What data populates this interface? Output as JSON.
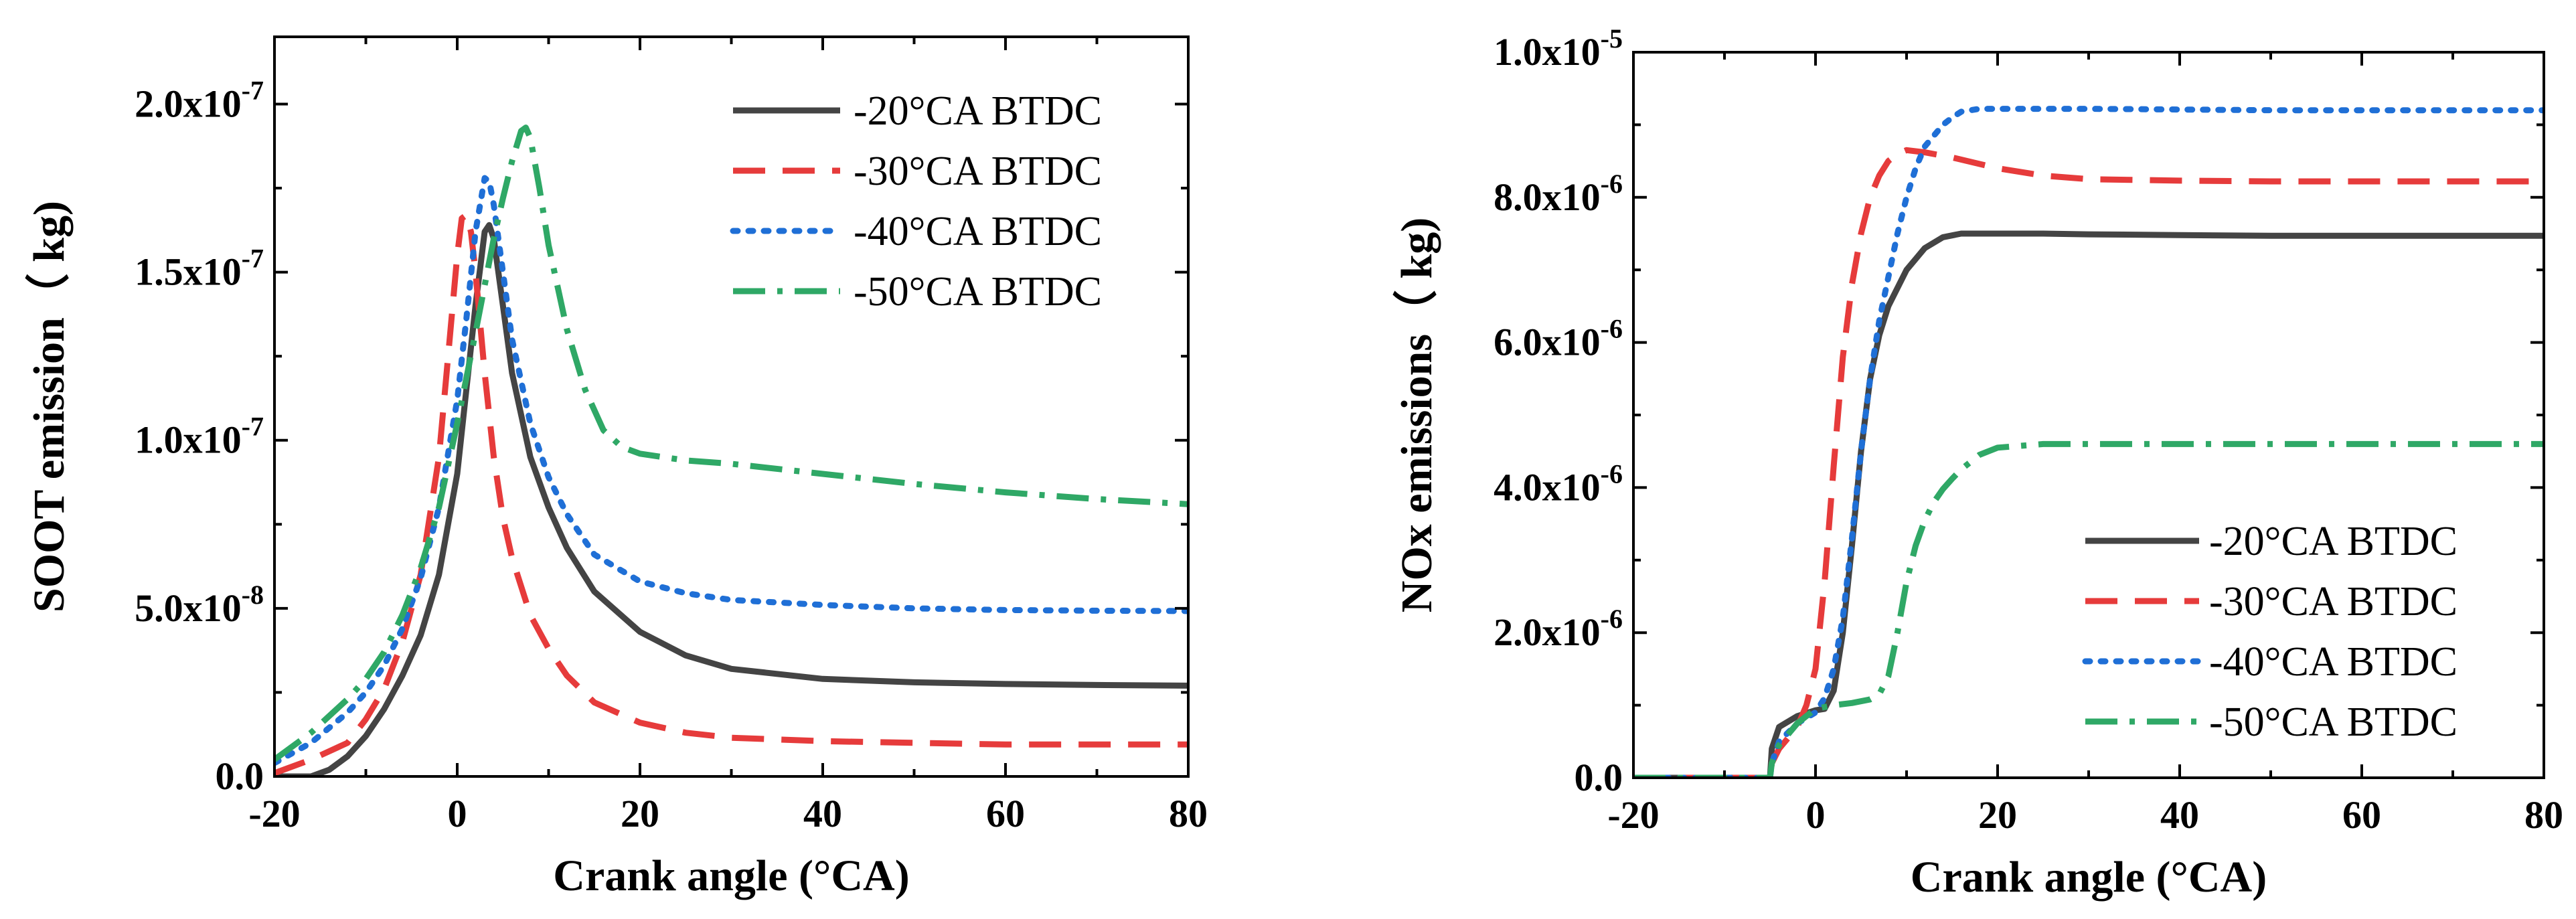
{
  "chart_data": [
    {
      "type": "line",
      "id": "soot",
      "xlabel": "Crank angle (°CA)",
      "ylabel": "SOOT emission（ kg)",
      "xlim": [
        -20,
        80
      ],
      "ylim": [
        0,
        2.2e-07
      ],
      "xticks": [
        -20,
        0,
        20,
        40,
        60,
        80
      ],
      "xtick_labels": [
        "-20",
        "0",
        "20",
        "40",
        "60",
        "80"
      ],
      "yticks": [
        {
          "value": 0,
          "mant": "0.0",
          "exp": ""
        },
        {
          "value": 5e-08,
          "mant": "5.0x10",
          "exp": "-8"
        },
        {
          "value": 1e-07,
          "mant": "1.0x10",
          "exp": "-7"
        },
        {
          "value": 1.5e-07,
          "mant": "1.5x10",
          "exp": "-7"
        },
        {
          "value": 2e-07,
          "mant": "2.0x10",
          "exp": "-7"
        }
      ],
      "legend_position": "top-right",
      "series": [
        {
          "name": "-20°CA BTDC",
          "color": "#444444",
          "dash": "solid",
          "x": [
            -20,
            -16,
            -14,
            -12,
            -10,
            -8,
            -6,
            -4,
            -2,
            0,
            1,
            2,
            3,
            3.5,
            4,
            5,
            6,
            8,
            10,
            12,
            15,
            20,
            25,
            30,
            40,
            50,
            60,
            70,
            80
          ],
          "y": [
            0,
            0,
            2e-09,
            6e-09,
            1.2e-08,
            2e-08,
            3e-08,
            4.2e-08,
            6e-08,
            9e-08,
            1.15e-07,
            1.4e-07,
            1.62e-07,
            1.64e-07,
            1.6e-07,
            1.4e-07,
            1.2e-07,
            9.5e-08,
            8e-08,
            6.8e-08,
            5.5e-08,
            4.3e-08,
            3.6e-08,
            3.2e-08,
            2.9e-08,
            2.8e-08,
            2.75e-08,
            2.72e-08,
            2.7e-08
          ]
        },
        {
          "name": "-30°CA BTDC",
          "color": "#e63b3b",
          "dash": "long-dash",
          "x": [
            -20,
            -16,
            -12,
            -10,
            -8,
            -6,
            -4,
            -2,
            -1,
            0,
            0.5,
            1,
            1.5,
            2,
            3,
            4,
            5,
            6,
            8,
            10,
            12,
            15,
            20,
            25,
            30,
            40,
            50,
            60,
            70,
            80
          ],
          "y": [
            1e-09,
            5e-09,
            1e-08,
            1.7e-08,
            2.6e-08,
            4e-08,
            6e-08,
            9.5e-08,
            1.25e-07,
            1.55e-07,
            1.66e-07,
            1.67e-07,
            1.62e-07,
            1.5e-07,
            1.2e-07,
            9.5e-08,
            7.7e-08,
            6.5e-08,
            4.8e-08,
            3.8e-08,
            3e-08,
            2.2e-08,
            1.6e-08,
            1.3e-08,
            1.15e-08,
            1.05e-08,
            1e-08,
            9.5e-09,
            9.5e-09,
            9.5e-09
          ]
        },
        {
          "name": "-40°CA BTDC",
          "color": "#1f6fd6",
          "dash": "dot",
          "x": [
            -20,
            -16,
            -12,
            -10,
            -8,
            -6,
            -4,
            -2,
            0,
            1,
            2,
            3,
            3.5,
            4,
            5,
            6,
            8,
            10,
            12,
            15,
            20,
            25,
            30,
            40,
            50,
            60,
            70,
            80
          ],
          "y": [
            4e-09,
            1e-08,
            1.9e-08,
            2.5e-08,
            3.3e-08,
            4.4e-08,
            5.9e-08,
            8e-08,
            1.12e-07,
            1.36e-07,
            1.62e-07,
            1.78e-07,
            1.77e-07,
            1.7e-07,
            1.5e-07,
            1.3e-07,
            1.05e-07,
            8.9e-08,
            7.8e-08,
            6.6e-08,
            5.8e-08,
            5.45e-08,
            5.25e-08,
            5.1e-08,
            5e-08,
            4.95e-08,
            4.93e-08,
            4.92e-08
          ]
        },
        {
          "name": "-50°CA BTDC",
          "color": "#2fa866",
          "dash": "dash-dot",
          "x": [
            -20,
            -16,
            -12,
            -10,
            -8,
            -6,
            -4,
            -2,
            0,
            2,
            4,
            5,
            6,
            7,
            7.5,
            8,
            9,
            10,
            12,
            14,
            16,
            18,
            20,
            25,
            30,
            40,
            50,
            60,
            70,
            80
          ],
          "y": [
            5e-09,
            1.3e-08,
            2.3e-08,
            2.9e-08,
            3.7e-08,
            4.8e-08,
            6.2e-08,
            8e-08,
            1.05e-07,
            1.32e-07,
            1.6e-07,
            1.72e-07,
            1.83e-07,
            1.92e-07,
            1.93e-07,
            1.9e-07,
            1.75e-07,
            1.58e-07,
            1.33e-07,
            1.15e-07,
            1.03e-07,
            9.8e-08,
            9.6e-08,
            9.4e-08,
            9.3e-08,
            9e-08,
            8.7e-08,
            8.45e-08,
            8.25e-08,
            8.1e-08
          ]
        }
      ]
    },
    {
      "type": "line",
      "id": "nox",
      "xlabel": "Crank angle (°CA)",
      "ylabel": "NOx  emissions（ kg)",
      "xlim": [
        -20,
        80
      ],
      "ylim": [
        0,
        1e-05
      ],
      "xticks": [
        -20,
        0,
        20,
        40,
        60,
        80
      ],
      "xtick_labels": [
        "-20",
        "0",
        "20",
        "40",
        "60",
        "80"
      ],
      "yticks": [
        {
          "value": 0,
          "mant": "0.0",
          "exp": ""
        },
        {
          "value": 2e-06,
          "mant": "2.0x10",
          "exp": "-6"
        },
        {
          "value": 4e-06,
          "mant": "4.0x10",
          "exp": "-6"
        },
        {
          "value": 6e-06,
          "mant": "6.0x10",
          "exp": "-6"
        },
        {
          "value": 8e-06,
          "mant": "8.0x10",
          "exp": "-6"
        },
        {
          "value": 1e-05,
          "mant": "1.0x10",
          "exp": "-5"
        }
      ],
      "legend_position": "bottom-right",
      "series": [
        {
          "name": "-20°CA BTDC",
          "color": "#444444",
          "dash": "solid",
          "x": [
            -20,
            -5,
            -4.8,
            -4,
            -2,
            0,
            1,
            2,
            3,
            4,
            5,
            6,
            7,
            8,
            10,
            12,
            14,
            16,
            18,
            20,
            25,
            30,
            40,
            50,
            60,
            70,
            80
          ],
          "y": [
            0,
            0,
            4e-07,
            7e-07,
            8.5e-07,
            9.3e-07,
            9.5e-07,
            1.2e-06,
            2e-06,
            3.2e-06,
            4.5e-06,
            5.5e-06,
            6.1e-06,
            6.5e-06,
            7e-06,
            7.3e-06,
            7.45e-06,
            7.5e-06,
            7.5e-06,
            7.5e-06,
            7.5e-06,
            7.49e-06,
            7.48e-06,
            7.47e-06,
            7.47e-06,
            7.47e-06,
            7.47e-06
          ]
        },
        {
          "name": "-30°CA BTDC",
          "color": "#e63b3b",
          "dash": "long-dash",
          "x": [
            -20,
            -5,
            -4.8,
            -4,
            -2,
            -1,
            0,
            1,
            2,
            3,
            4,
            5,
            6,
            7,
            8,
            9,
            10,
            12,
            15,
            20,
            25,
            30,
            40,
            50,
            60,
            70,
            80
          ],
          "y": [
            0,
            0,
            2e-07,
            4e-07,
            7e-07,
            1e-06,
            1.5e-06,
            2.7e-06,
            4.3e-06,
            5.8e-06,
            6.8e-06,
            7.5e-06,
            8e-06,
            8.3e-06,
            8.5e-06,
            8.6e-06,
            8.65e-06,
            8.62e-06,
            8.55e-06,
            8.4e-06,
            8.3e-06,
            8.25e-06,
            8.23e-06,
            8.22e-06,
            8.22e-06,
            8.22e-06,
            8.22e-06
          ]
        },
        {
          "name": "-40°CA BTDC",
          "color": "#1f6fd6",
          "dash": "dot",
          "x": [
            -20,
            -5,
            -4.8,
            -4,
            -2,
            0,
            1,
            2,
            3,
            4,
            5,
            6,
            7,
            8,
            9,
            10,
            11,
            12,
            14,
            15,
            16,
            18,
            20,
            30,
            40,
            50,
            60,
            70,
            80
          ],
          "y": [
            0,
            0,
            2e-07,
            5e-07,
            7.5e-07,
            9e-07,
            1.1e-06,
            1.5e-06,
            2.2e-06,
            3.3e-06,
            4.5e-06,
            5.5e-06,
            6.3e-06,
            6.9e-06,
            7.5e-06,
            8e-06,
            8.4e-06,
            8.7e-06,
            9e-06,
            9.1e-06,
            9.18e-06,
            9.22e-06,
            9.22e-06,
            9.22e-06,
            9.21e-06,
            9.2e-06,
            9.2e-06,
            9.2e-06,
            9.2e-06
          ]
        },
        {
          "name": "-50°CA BTDC",
          "color": "#2fa866",
          "dash": "dash-dot",
          "x": [
            -20,
            -5,
            -4.8,
            -4,
            -2,
            0,
            2,
            4,
            6,
            7,
            8,
            9,
            10,
            11,
            12,
            13,
            14,
            15,
            16,
            18,
            20,
            25,
            30,
            40,
            50,
            60,
            70,
            80
          ],
          "y": [
            0,
            0,
            2e-07,
            4.5e-07,
            7.5e-07,
            9.5e-07,
            1e-06,
            1.03e-06,
            1.08e-06,
            1.15e-06,
            1.4e-06,
            2e-06,
            2.7e-06,
            3.2e-06,
            3.55e-06,
            3.8e-06,
            3.98e-06,
            4.12e-06,
            4.25e-06,
            4.45e-06,
            4.55e-06,
            4.6e-06,
            4.6e-06,
            4.6e-06,
            4.6e-06,
            4.6e-06,
            4.6e-06,
            4.6e-06
          ]
        }
      ]
    }
  ]
}
